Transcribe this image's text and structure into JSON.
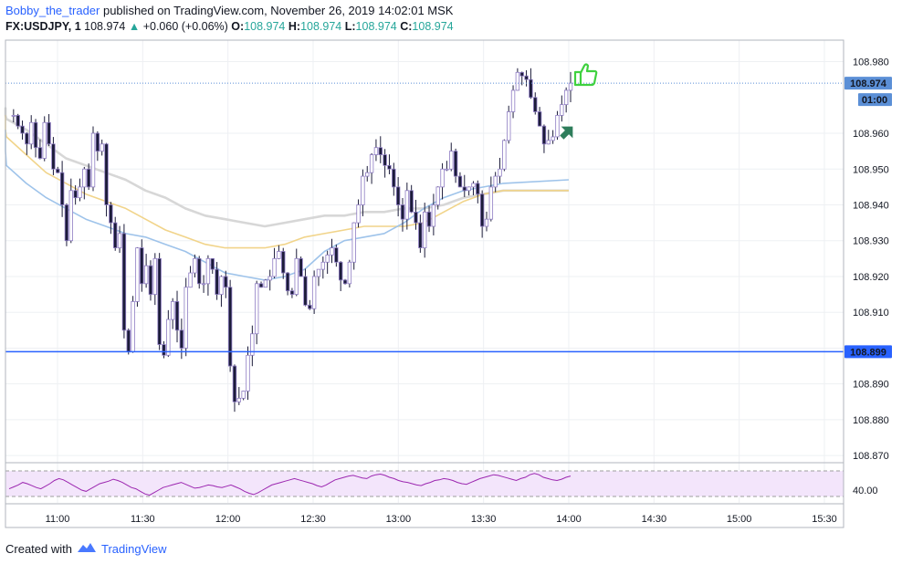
{
  "header": {
    "author": "Bobby_the_trader",
    "published_text": " published on TradingView.com, November 26, 2019 14:02:01 MSK",
    "symbol": "FX:USDJPY, 1",
    "last_price": "108.974",
    "change_arrow": "▲",
    "change": "+0.060 (+0.06%)",
    "open_label": "O:",
    "open": "108.974",
    "high_label": "H:",
    "high": "108.974",
    "low_label": "L:",
    "low": "108.974",
    "close_label": "C:",
    "close": "108.974"
  },
  "footer": {
    "created_with": "Created with",
    "brand": "TradingView"
  },
  "colors": {
    "candle_body": "#1c1c3a",
    "candle_outline": "#8e7cc3",
    "ma_fast": "#9ec3ea",
    "ma_mid": "#f1d48a",
    "ma_slow": "#d7d7d7",
    "support_line": "#2962ff",
    "price_tag": "#5b8fd6",
    "rsi_line": "#9c27b0",
    "rsi_fill": "#f3e5fb",
    "thumb_icon": "#3fd13f",
    "arrow_icon": "#2e7d5b"
  },
  "icons": [
    "thumbs-up-icon",
    "up-arrow-marker-icon",
    "tradingview-cloud-logo-icon"
  ],
  "chart_data": {
    "type": "candlestick",
    "interval": "1 minute",
    "price_axis": {
      "ylim": [
        108.868,
        108.986
      ],
      "ticks": [
        "108.980",
        "108.960",
        "108.950",
        "108.940",
        "108.930",
        "108.920",
        "108.910",
        "108.890",
        "108.880",
        "108.870"
      ]
    },
    "time_axis": {
      "ticks": [
        "11:00",
        "11:30",
        "12:00",
        "12:30",
        "13:00",
        "13:30",
        "14:00",
        "14:30",
        "15:00",
        "15:30"
      ]
    },
    "last_price_label": "108.974",
    "countdown_label": "01:00",
    "horizontal_line": {
      "label": "108.899",
      "value": 108.899
    },
    "ma_series": [
      {
        "key": "fast",
        "values": [
          108.961,
          108.961,
          108.96,
          108.958,
          108.957,
          108.955,
          108.951,
          108.946,
          108.942,
          108.939,
          108.936,
          108.934,
          108.932,
          108.931,
          108.929,
          108.927,
          108.924,
          108.921,
          108.92,
          108.919,
          108.92,
          108.922,
          108.927,
          108.93,
          108.931,
          108.932,
          108.935,
          108.939,
          108.942,
          108.944,
          108.945,
          108.946,
          108.947
        ]
      },
      {
        "key": "mid",
        "values": [
          108.964,
          108.965,
          108.964,
          108.963,
          108.962,
          108.961,
          108.959,
          108.954,
          108.949,
          108.946,
          108.943,
          108.941,
          108.939,
          108.936,
          108.933,
          108.931,
          108.929,
          108.928,
          108.928,
          108.928,
          108.929,
          108.931,
          108.932,
          108.933,
          108.934,
          108.934,
          108.934,
          108.935,
          108.938,
          108.941,
          108.943,
          108.944,
          108.944
        ]
      },
      {
        "key": "slow",
        "values": [
          108.966,
          108.967,
          108.967,
          108.966,
          108.966,
          108.965,
          108.964,
          108.961,
          108.957,
          108.953,
          108.951,
          108.949,
          108.947,
          108.944,
          108.942,
          108.939,
          108.937,
          108.936,
          108.935,
          108.934,
          108.935,
          108.936,
          108.937,
          108.937,
          108.938,
          108.938,
          108.939,
          108.939,
          108.94,
          108.942,
          108.943,
          108.944,
          108.944
        ]
      }
    ],
    "ma_times_minutes_from_1100": [
      -60,
      -53,
      -46,
      -39,
      -32,
      -25,
      -18,
      -11,
      -4,
      3,
      10,
      17,
      24,
      31,
      38,
      45,
      52,
      59,
      66,
      73,
      80,
      87,
      94,
      101,
      108,
      115,
      122,
      129,
      136,
      143,
      150,
      157,
      180
    ],
    "close_path": [
      108.965,
      108.965,
      108.962,
      108.96,
      108.957,
      108.963,
      108.956,
      108.953,
      108.963,
      108.957,
      108.95,
      108.949,
      108.94,
      108.93,
      108.944,
      108.942,
      108.945,
      108.95,
      108.945,
      108.96,
      108.955,
      108.957,
      108.94,
      108.935,
      108.928,
      108.932,
      108.905,
      108.899,
      108.913,
      108.928,
      108.918,
      108.923,
      108.915,
      108.925,
      108.901,
      108.898,
      108.908,
      108.913,
      108.905,
      108.9,
      108.917,
      108.921,
      108.925,
      108.918,
      108.918,
      108.925,
      108.922,
      108.915,
      108.92,
      108.917,
      108.895,
      108.885,
      108.886,
      108.888,
      108.898,
      108.904,
      108.918,
      108.917,
      108.919,
      108.92,
      108.925,
      108.927,
      108.921,
      108.916,
      108.915,
      108.925,
      108.92,
      108.912,
      108.911,
      108.92,
      108.922,
      108.924,
      108.926,
      108.928,
      108.924,
      108.919,
      108.918,
      108.924,
      108.935,
      108.94,
      108.948,
      108.949,
      108.954,
      108.956,
      108.954,
      108.951,
      108.95,
      108.945,
      108.94,
      108.936,
      108.944,
      108.938,
      108.935,
      108.928,
      108.938,
      108.934,
      108.94,
      108.945,
      108.95,
      108.95,
      108.955,
      108.948,
      108.945,
      108.944,
      108.945,
      108.946,
      108.943,
      108.934,
      108.936,
      108.945,
      108.948,
      108.95,
      108.958,
      108.966,
      108.972,
      108.977,
      108.976,
      108.975,
      108.97,
      108.966,
      108.962,
      108.957,
      108.958,
      108.959,
      108.965,
      108.968,
      108.972,
      108.974
    ],
    "rsi": {
      "level_label": "40.00",
      "ylim": [
        20,
        80
      ],
      "bands": [
        30,
        70
      ],
      "values": [
        42,
        45,
        48,
        52,
        50,
        47,
        44,
        42,
        46,
        50,
        55,
        58,
        56,
        52,
        48,
        44,
        40,
        38,
        42,
        46,
        50,
        52,
        54,
        57,
        55,
        52,
        48,
        44,
        42,
        38,
        34,
        32,
        36,
        40,
        44,
        46,
        48,
        50,
        52,
        49,
        46,
        43,
        44,
        46,
        48,
        47,
        45,
        44,
        46,
        48,
        45,
        42,
        38,
        35,
        33,
        36,
        40,
        44,
        48,
        50,
        52,
        54,
        56,
        58,
        56,
        54,
        52,
        50,
        47,
        45,
        48,
        52,
        56,
        58,
        60,
        62,
        63,
        61,
        59,
        58,
        62,
        64,
        65,
        63,
        60,
        58,
        55,
        53,
        52,
        50,
        48,
        47,
        50,
        52,
        55,
        56,
        58,
        57,
        55,
        52,
        50,
        49,
        52,
        55,
        58,
        60,
        62,
        64,
        63,
        61,
        59,
        57,
        55,
        58,
        60,
        64,
        66,
        64,
        60,
        58,
        56,
        55,
        57,
        60,
        62
      ]
    }
  }
}
